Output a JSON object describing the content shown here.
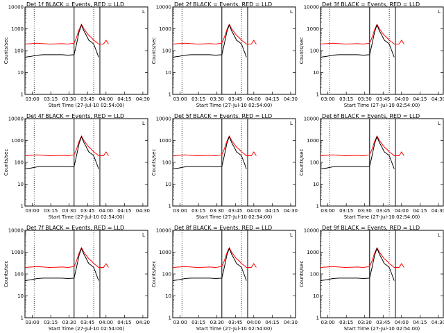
{
  "chart_data": [
    {
      "type": "line",
      "title": "Det 1f BLACK = Events, RED = LLD"
    },
    {
      "type": "line",
      "title": "Det 2f BLACK = Events, RED = LLD"
    },
    {
      "type": "line",
      "title": "Det 3f BLACK = Events, RED = LLD"
    },
    {
      "type": "line",
      "title": "Det 4f BLACK = Events, RED = LLD"
    },
    {
      "type": "line",
      "title": "Det 5f BLACK = Events, RED = LLD"
    },
    {
      "type": "line",
      "title": "Det 6f BLACK = Events, RED = LLD"
    },
    {
      "type": "line",
      "title": "Det 7f BLACK = Events, RED = LLD"
    },
    {
      "type": "line",
      "title": "Det 8f BLACK = Events, RED = LLD"
    },
    {
      "type": "line",
      "title": "Det 9f BLACK = Events, RED = LLD"
    }
  ],
  "shared": {
    "xlabel": "Start Time (27-Jul-10 02:54:00)",
    "ylabel": "Counts/sec",
    "x_ticks": [
      "03:00",
      "03:15",
      "03:30",
      "03:45",
      "04:00",
      "04:15",
      "04:30"
    ],
    "y_ticks": [
      "1",
      "10",
      "100",
      "1000",
      "10000"
    ],
    "xlim_minutes": [
      0,
      100
    ],
    "ylim": [
      1,
      10000
    ],
    "y_scale": "log",
    "events_color": "#000000",
    "lld_color": "#ff0000",
    "corner_mark": "L",
    "dotted_lines_minutes": [
      7.5,
      56
    ],
    "solid_lines_minutes": [
      40,
      61
    ],
    "series_templates": {
      "events": {
        "time_minutes": [
          0,
          5,
          10,
          15,
          20,
          25,
          30,
          35,
          40,
          42,
          44,
          46,
          48,
          50,
          52,
          54,
          56,
          58,
          60
        ],
        "counts": [
          50,
          55,
          62,
          65,
          65,
          65,
          65,
          62,
          65,
          200,
          700,
          1500,
          800,
          500,
          300,
          250,
          200,
          100,
          50
        ]
      },
      "lld": {
        "time_minutes": [
          0,
          5,
          10,
          15,
          20,
          25,
          30,
          35,
          40,
          42,
          44,
          46,
          48,
          50,
          52,
          54,
          56,
          58,
          60,
          62,
          64,
          66,
          68
        ],
        "counts": [
          200,
          210,
          220,
          210,
          200,
          205,
          210,
          200,
          220,
          400,
          900,
          1600,
          1000,
          700,
          500,
          400,
          300,
          250,
          200,
          200,
          200,
          300,
          200
        ]
      }
    }
  }
}
